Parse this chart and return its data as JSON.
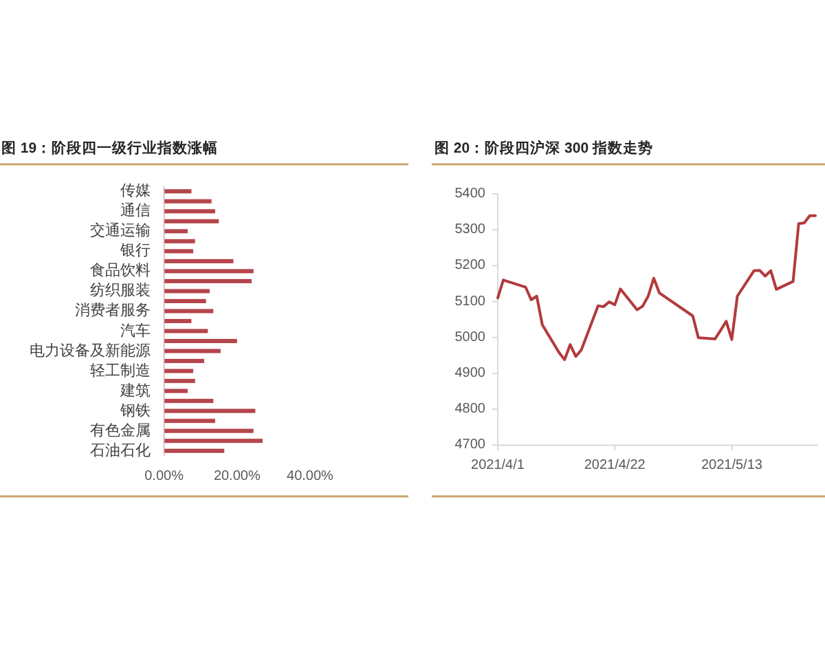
{
  "chart_data": [
    {
      "type": "bar",
      "orientation": "horizontal",
      "title": "图 19：阶段四一级行业指数涨幅",
      "categories": [
        "传媒",
        null,
        "通信",
        null,
        "交通运输",
        null,
        "银行",
        null,
        "食品饮料",
        null,
        "纺织服装",
        null,
        "消费者服务",
        null,
        "汽车",
        null,
        "电力设备及新能源",
        null,
        "轻工制造",
        null,
        "建筑",
        null,
        "钢铁",
        null,
        "有色金属",
        null,
        "石油石化"
      ],
      "values": [
        7.5,
        13,
        14,
        15,
        6.5,
        8.5,
        8,
        19,
        24.5,
        24,
        12.5,
        11.5,
        13.5,
        7.5,
        12,
        20,
        15.5,
        11,
        8,
        8.5,
        6.5,
        13.5,
        25,
        14,
        24.5,
        27,
        16.5
      ],
      "color": "#b4464b",
      "xlim": [
        0,
        40
      ],
      "xticks": [
        {
          "value": 0,
          "label": "0.00%"
        },
        {
          "value": 20,
          "label": "20.00%"
        },
        {
          "value": 40,
          "label": "40.00%"
        }
      ]
    },
    {
      "type": "line",
      "title": "图 20：阶段四沪深 300 指数走势",
      "x": [
        "2021-04-01",
        "2021-04-02",
        "2021-04-06",
        "2021-04-07",
        "2021-04-08",
        "2021-04-09",
        "2021-04-12",
        "2021-04-13",
        "2021-04-14",
        "2021-04-15",
        "2021-04-16",
        "2021-04-19",
        "2021-04-20",
        "2021-04-21",
        "2021-04-22",
        "2021-04-23",
        "2021-04-26",
        "2021-04-27",
        "2021-04-28",
        "2021-04-29",
        "2021-04-30",
        "2021-05-06",
        "2021-05-07",
        "2021-05-10",
        "2021-05-11",
        "2021-05-12",
        "2021-05-13",
        "2021-05-14",
        "2021-05-17",
        "2021-05-18",
        "2021-05-19",
        "2021-05-20",
        "2021-05-21",
        "2021-05-24",
        "2021-05-25",
        "2021-05-26",
        "2021-05-27",
        "2021-05-28"
      ],
      "values": [
        5110,
        5160,
        5140,
        5105,
        5115,
        5035,
        4958,
        4938,
        4980,
        4947,
        4965,
        5088,
        5086,
        5099,
        5091,
        5135,
        5077,
        5087,
        5115,
        5165,
        5124,
        5060,
        4999,
        4996,
        5020,
        5045,
        4994,
        5115,
        5186,
        5187,
        5171,
        5186,
        5134,
        5156,
        5317,
        5319,
        5339,
        5339
      ],
      "color": "#b23a3c",
      "xlim": [
        "2021-04-01",
        "2021-05-28"
      ],
      "xticks": [
        {
          "value": "2021-04-01",
          "label": "2021/4/1"
        },
        {
          "value": "2021-04-22",
          "label": "2021/4/22"
        },
        {
          "value": "2021-05-13",
          "label": "2021/5/13"
        }
      ],
      "ylim": [
        4700,
        5400
      ],
      "yticks": [
        4700,
        4800,
        4900,
        5000,
        5100,
        5200,
        5300,
        5400
      ]
    }
  ]
}
